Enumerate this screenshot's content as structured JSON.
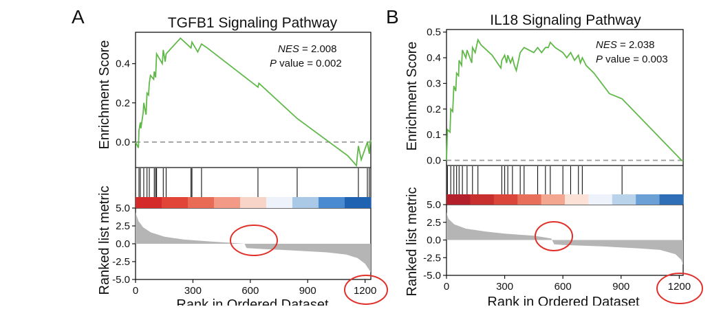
{
  "chart_data": [
    {
      "panel": "A",
      "type": "line",
      "title": "TGFB1 Signaling Pathway",
      "ylabel_top": "Enrichment Score",
      "ylabel_bottom": "Ranked list metric",
      "xlabel": "Rank in Ordered Dataset",
      "nes_label": "NES",
      "nes_value": " = 2.008",
      "p_label": "P",
      "p_value": " value = 0.002",
      "xlim": [
        0,
        1230
      ],
      "xticks": [
        0,
        300,
        600,
        900,
        1200
      ],
      "es_ylim": [
        -0.13,
        0.56
      ],
      "es_yticks": [
        0.0,
        0.2,
        0.4
      ],
      "es_ytick_labels": [
        "0.0",
        "0.2",
        "0.4"
      ],
      "metric_ylim": [
        -5,
        5
      ],
      "metric_yticks": [
        5.0,
        2.5,
        0.0,
        -2.5,
        -5.0
      ],
      "metric_ytick_labels": [
        "5.0",
        "2.5",
        "0.0",
        "-2.5",
        "-5.0"
      ],
      "es_curve": [
        [
          0,
          0
        ],
        [
          15,
          -0.03
        ],
        [
          18,
          0.06
        ],
        [
          25,
          0.1
        ],
        [
          28,
          0.07
        ],
        [
          40,
          0.15
        ],
        [
          43,
          0.2
        ],
        [
          55,
          0.14
        ],
        [
          60,
          0.25
        ],
        [
          68,
          0.24
        ],
        [
          72,
          0.3
        ],
        [
          78,
          0.34
        ],
        [
          95,
          0.32
        ],
        [
          98,
          0.36
        ],
        [
          105,
          0.33
        ],
        [
          110,
          0.45
        ],
        [
          140,
          0.4
        ],
        [
          145,
          0.47
        ],
        [
          155,
          0.41
        ],
        [
          160,
          0.45
        ],
        [
          235,
          0.53
        ],
        [
          290,
          0.48
        ],
        [
          295,
          0.51
        ],
        [
          325,
          0.46
        ],
        [
          345,
          0.5
        ],
        [
          375,
          0.48
        ],
        [
          640,
          0.28
        ],
        [
          645,
          0.3
        ],
        [
          845,
          0.12
        ],
        [
          1110,
          -0.07
        ],
        [
          1155,
          -0.12
        ],
        [
          1165,
          -0.02
        ],
        [
          1180,
          -0.09
        ],
        [
          1212,
          0.0
        ],
        [
          1222,
          -0.06
        ],
        [
          1228,
          0.01
        ],
        [
          1230,
          0.0
        ]
      ],
      "hits": [
        18,
        25,
        43,
        60,
        72,
        98,
        105,
        110,
        145,
        160,
        290,
        295,
        345,
        640,
        845,
        1165,
        1212,
        1222
      ],
      "metric_curve": [
        [
          0,
          4.4
        ],
        [
          15,
          3.2
        ],
        [
          40,
          2.3
        ],
        [
          80,
          1.6
        ],
        [
          150,
          1.0
        ],
        [
          250,
          0.6
        ],
        [
          400,
          0.3
        ],
        [
          520,
          0.1
        ],
        [
          570,
          0.0
        ],
        [
          580,
          -0.6
        ],
        [
          640,
          -0.7
        ],
        [
          800,
          -0.9
        ],
        [
          1000,
          -1.2
        ],
        [
          1100,
          -1.5
        ],
        [
          1160,
          -2.0
        ],
        [
          1200,
          -2.8
        ],
        [
          1230,
          -4.0
        ]
      ],
      "heat_colors": [
        "#d42a2a",
        "#e04537",
        "#ea6b55",
        "#f29a85",
        "#f8d3c7",
        "#eef2fa",
        "#a9c9e6",
        "#4a8ad0",
        "#1f62b1"
      ],
      "highlight_circles": [
        "curve-dip",
        "x-end"
      ]
    },
    {
      "panel": "B",
      "type": "line",
      "title": "IL18 Signaling Pathway",
      "ylabel_top": "Enrichment Score",
      "ylabel_bottom": "Ranked list metric",
      "xlabel": "Rank in Ordered Dataset",
      "nes_label": "NES",
      "nes_value": " = 2.038",
      "p_label": "P",
      "p_value": " value = 0.003",
      "xlim": [
        0,
        1220
      ],
      "xticks": [
        0,
        300,
        600,
        900,
        1200
      ],
      "es_ylim": [
        -0.02,
        0.51
      ],
      "es_yticks": [
        0.0,
        0.1,
        0.2,
        0.3,
        0.4,
        0.5
      ],
      "es_ytick_labels": [
        "0.0",
        "0.1",
        "0.2",
        "0.3",
        "0.4",
        "0.5"
      ],
      "metric_ylim": [
        -5,
        5
      ],
      "metric_yticks": [
        5.0,
        2.5,
        0.0,
        -2.5,
        -5.0
      ],
      "metric_ytick_labels": [
        "5.0",
        "2.5",
        "0.0",
        "-2.5",
        "-5.0"
      ],
      "es_curve": [
        [
          0,
          0.0
        ],
        [
          5,
          0.12
        ],
        [
          18,
          0.11
        ],
        [
          22,
          0.2
        ],
        [
          32,
          0.19
        ],
        [
          38,
          0.29
        ],
        [
          48,
          0.27
        ],
        [
          52,
          0.34
        ],
        [
          62,
          0.33
        ],
        [
          65,
          0.39
        ],
        [
          78,
          0.37
        ],
        [
          82,
          0.43
        ],
        [
          100,
          0.4
        ],
        [
          106,
          0.43
        ],
        [
          130,
          0.38
        ],
        [
          134,
          0.44
        ],
        [
          148,
          0.42
        ],
        [
          162,
          0.47
        ],
        [
          178,
          0.45
        ],
        [
          235,
          0.41
        ],
        [
          280,
          0.36
        ],
        [
          285,
          0.39
        ],
        [
          300,
          0.41
        ],
        [
          310,
          0.38
        ],
        [
          316,
          0.41
        ],
        [
          330,
          0.38
        ],
        [
          340,
          0.4
        ],
        [
          350,
          0.37
        ],
        [
          360,
          0.35
        ],
        [
          380,
          0.42
        ],
        [
          400,
          0.44
        ],
        [
          450,
          0.42
        ],
        [
          470,
          0.44
        ],
        [
          490,
          0.42
        ],
        [
          510,
          0.44
        ],
        [
          525,
          0.44
        ],
        [
          535,
          0.46
        ],
        [
          560,
          0.44
        ],
        [
          600,
          0.42
        ],
        [
          620,
          0.4
        ],
        [
          640,
          0.42
        ],
        [
          660,
          0.39
        ],
        [
          680,
          0.41
        ],
        [
          690,
          0.38
        ],
        [
          700,
          0.4
        ],
        [
          720,
          0.37
        ],
        [
          760,
          0.34
        ],
        [
          840,
          0.26
        ],
        [
          905,
          0.24
        ],
        [
          1212,
          0.0
        ],
        [
          1220,
          0.0
        ]
      ],
      "hits": [
        5,
        22,
        38,
        52,
        65,
        82,
        106,
        134,
        162,
        285,
        300,
        316,
        340,
        380,
        400,
        470,
        510,
        535,
        600,
        640,
        680,
        700,
        905
      ],
      "metric_curve": [
        [
          0,
          3.9
        ],
        [
          10,
          3.0
        ],
        [
          40,
          2.2
        ],
        [
          100,
          1.6
        ],
        [
          200,
          1.2
        ],
        [
          300,
          0.9
        ],
        [
          450,
          0.6
        ],
        [
          520,
          0.3
        ],
        [
          540,
          0.2
        ],
        [
          555,
          -0.6
        ],
        [
          600,
          -0.7
        ],
        [
          800,
          -0.9
        ],
        [
          1000,
          -1.2
        ],
        [
          1100,
          -1.4
        ],
        [
          1180,
          -2.0
        ],
        [
          1210,
          -2.8
        ],
        [
          1220,
          -3.5
        ]
      ],
      "heat_colors": [
        "#b3202b",
        "#c8302f",
        "#da4639",
        "#e8705a",
        "#f3a690",
        "#fbe1d6",
        "#eef3fb",
        "#b9d3ea",
        "#6aa0d6",
        "#2f6fb8"
      ],
      "highlight_circles": [
        "curve-dip",
        "x-end"
      ]
    }
  ]
}
